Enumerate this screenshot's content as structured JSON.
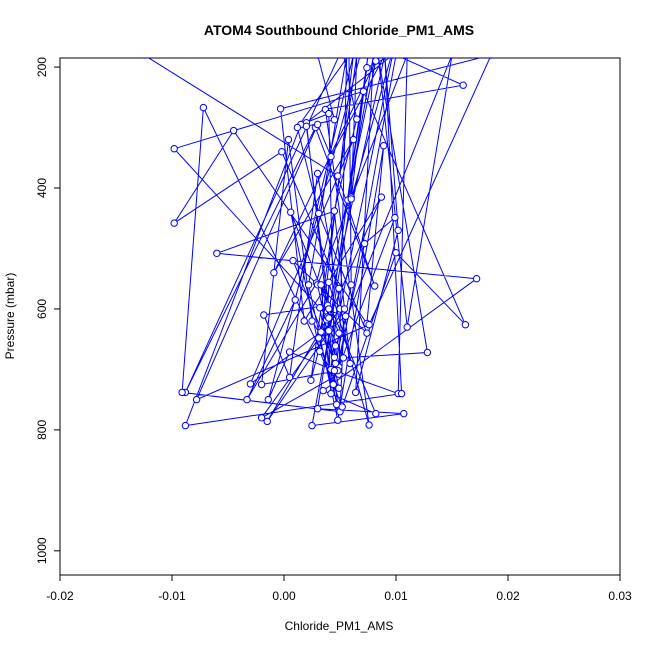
{
  "chart_data": {
    "type": "line",
    "title": "ATOM4 Southbound Chloride_PM1_AMS",
    "xlabel": "Chloride_PM1_AMS",
    "ylabel": "Pressure (mbar)",
    "xlim": [
      -0.02,
      0.03
    ],
    "ylim": [
      1040,
      185
    ],
    "y_reversed": true,
    "grid": false,
    "legend": "none",
    "xticks": [
      -0.02,
      -0.01,
      0.0,
      0.01,
      0.02,
      0.03
    ],
    "xtick_labels": [
      "-0.02",
      "-0.01",
      "0.00",
      "0.01",
      "0.02",
      "0.03"
    ],
    "yticks": [
      200,
      400,
      600,
      800,
      1000
    ],
    "ytick_labels": [
      "200",
      "400",
      "600",
      "800",
      "1000"
    ],
    "colors": {
      "series": "#0000ff",
      "axis": "#000000",
      "background": "#ffffff"
    },
    "series": [
      {
        "marker": "open-circle",
        "points": [
          [
            -0.0125,
            180
          ],
          [
            0.0048,
            380
          ],
          [
            0.0081,
            562
          ],
          [
            0.0028,
            300
          ],
          [
            -0.0088,
            738
          ],
          [
            0.0052,
            170
          ],
          [
            0.0065,
            286
          ],
          [
            0.0029,
            557
          ],
          [
            -0.0033,
            750
          ],
          [
            0.001,
            585
          ],
          [
            0.0062,
            180
          ],
          [
            0.0033,
            638
          ],
          [
            -0.003,
            724
          ],
          [
            0.0062,
            320
          ],
          [
            -0.0009,
            540
          ],
          [
            0.0082,
            190
          ],
          [
            0.0031,
            648
          ],
          [
            0.0048,
            760
          ],
          [
            0.002,
            292
          ],
          [
            0.0097,
            180
          ],
          [
            0.005,
            600
          ],
          [
            -0.002,
            780
          ],
          [
            0.0049,
            708
          ],
          [
            0.0056,
            180
          ],
          [
            0.0022,
            560
          ],
          [
            0.0048,
            784
          ],
          [
            0.0089,
            330
          ],
          [
            0.0074,
            624
          ],
          [
            -0.0045,
            305
          ],
          [
            -0.0098,
            458
          ],
          [
            -0.0002,
            340
          ],
          [
            0.0049,
            566
          ],
          [
            0.0042,
            700
          ],
          [
            0.0102,
            740
          ],
          [
            0.011,
            180
          ],
          [
            0.003,
            560
          ],
          [
            0.0049,
            731
          ],
          [
            -0.0072,
            267
          ],
          [
            -0.0091,
            738
          ],
          [
            0.005,
            770
          ],
          [
            0.0054,
            600
          ],
          [
            -0.0015,
            786
          ],
          [
            0.0038,
            618
          ],
          [
            0.0024,
            718
          ],
          [
            0.0065,
            180
          ],
          [
            0.006,
            415
          ],
          [
            0.003,
            765
          ],
          [
            0.0107,
            773
          ],
          [
            0.0025,
            793
          ],
          [
            0.0041,
            634
          ],
          [
            0.0053,
            681
          ],
          [
            0.0128,
            672
          ],
          [
            0.0084,
            180
          ],
          [
            0.011,
            630
          ],
          [
            0.015,
            180
          ],
          [
            0.0046,
            661
          ],
          [
            0.0044,
            725
          ],
          [
            0.0072,
            492
          ],
          [
            0.0099,
            449
          ],
          [
            0.0049,
            696
          ],
          [
            0.01,
            180
          ],
          [
            0.016,
            230
          ],
          [
            0.0037,
            270
          ],
          [
            0.0076,
            792
          ],
          [
            0.004,
            556
          ],
          [
            0.0039,
            613
          ],
          [
            0.0042,
            740
          ],
          [
            0.0033,
            560
          ],
          [
            0.0082,
            773
          ],
          [
            0.0035,
            735
          ],
          [
            0.0172,
            550
          ],
          [
            -0.006,
            508
          ],
          [
            0.0045,
            438
          ],
          [
            0.0059,
            690
          ],
          [
            0.003,
            376
          ],
          [
            0.0005,
            713
          ],
          [
            -0.0018,
            610
          ],
          [
            0.0039,
            594
          ],
          [
            0.0046,
            690
          ],
          [
            0.0049,
            640
          ],
          [
            0.0006,
            440
          ],
          [
            0.0032,
            670
          ],
          [
            0.0052,
            762
          ],
          [
            0.01,
            507
          ],
          [
            0.0162,
            626
          ],
          [
            0.0071,
            240
          ],
          [
            -0.0098,
            335
          ],
          [
            0.004,
            615
          ],
          [
            0.0087,
            415
          ],
          [
            0.0018,
            620
          ],
          [
            -0.0003,
            269
          ],
          [
            0.0185,
            180
          ],
          [
            0.0076,
            626
          ],
          [
            -0.0078,
            750
          ],
          [
            0.003,
            295
          ],
          [
            0.0042,
            348
          ],
          [
            0.009,
            180
          ],
          [
            0.0105,
            740
          ],
          [
            -0.0088,
            793
          ],
          [
            0.0015,
            295
          ],
          [
            0.004,
            277
          ],
          [
            0.0045,
            680
          ],
          [
            0.0025,
            620
          ],
          [
            0.0004,
            320
          ],
          [
            -0.002,
            725
          ],
          [
            0.0048,
            702
          ],
          [
            0.0008,
            520
          ],
          [
            0.0074,
            640
          ],
          [
            0.0031,
            442
          ],
          [
            0.0012,
            300
          ],
          [
            0.0058,
            180
          ],
          [
            0.006,
            560
          ],
          [
            0.0045,
            702
          ],
          [
            0.0005,
            671
          ],
          [
            -0.0014,
            750
          ],
          [
            0.0068,
            180
          ],
          [
            0.003,
            180
          ],
          [
            0.0045,
            287
          ],
          [
            0.002,
            298
          ],
          [
            0.004,
            600
          ],
          [
            0.009,
            180
          ],
          [
            0.0102,
            470
          ],
          [
            0.0064,
            738
          ],
          [
            0.008,
            180
          ],
          [
            0.0057,
            420
          ],
          [
            0.0074,
            201
          ],
          [
            0.0096,
            180
          ],
          [
            0.006,
            418
          ],
          [
            0.0075,
            180
          ],
          [
            0.004,
            636
          ],
          [
            0.0055,
            612
          ],
          [
            0.0032,
            598
          ],
          [
            0.0047,
            758
          ]
        ]
      }
    ]
  }
}
